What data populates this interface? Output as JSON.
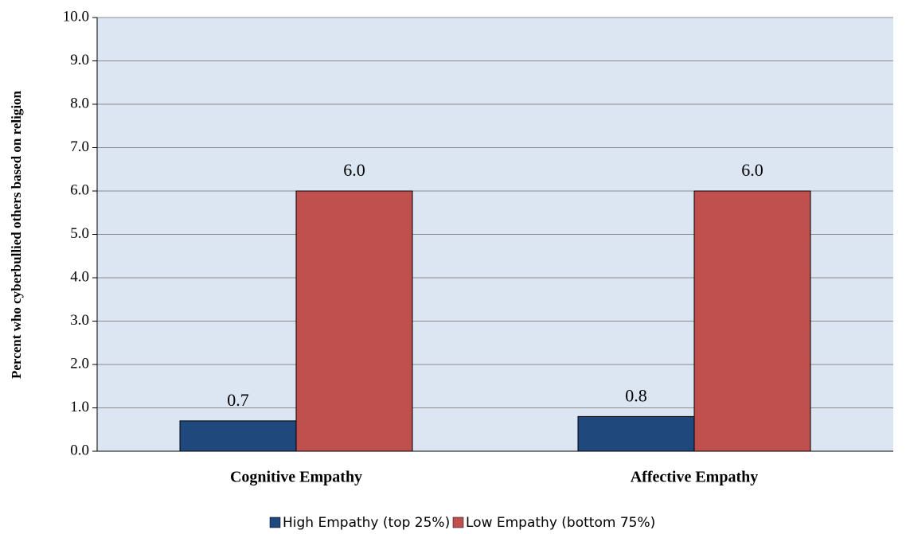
{
  "chart_data": {
    "type": "bar",
    "y_label": "Percent who cyberbullied others based on religion",
    "categories": [
      "Cognitive Empathy",
      "Affective Empathy"
    ],
    "series": [
      {
        "name": "High Empathy (top 25%)",
        "color": "#1f497d",
        "values": [
          0.7,
          0.8
        ],
        "value_labels": [
          "0.7",
          "0.8"
        ]
      },
      {
        "name": "Low Empathy (bottom 75%)",
        "color": "#c0504d",
        "values": [
          6,
          6
        ],
        "value_labels": [
          "6.0",
          "6.0"
        ]
      }
    ],
    "ylim": [
      0,
      10
    ],
    "yticks": [
      {
        "value": 0,
        "label": "0.0"
      },
      {
        "value": 1,
        "label": "1.0"
      },
      {
        "value": 2,
        "label": "2.0"
      },
      {
        "value": 3,
        "label": "3.0"
      },
      {
        "value": 4,
        "label": "4.0"
      },
      {
        "value": 5,
        "label": "5.0"
      },
      {
        "value": 6,
        "label": "6.0"
      },
      {
        "value": 7,
        "label": "7.0"
      },
      {
        "value": 8,
        "label": "8.0"
      },
      {
        "value": 9,
        "label": "9.0"
      },
      {
        "value": 10,
        "label": "10.0"
      }
    ],
    "grid": true,
    "legend": "bottom"
  }
}
